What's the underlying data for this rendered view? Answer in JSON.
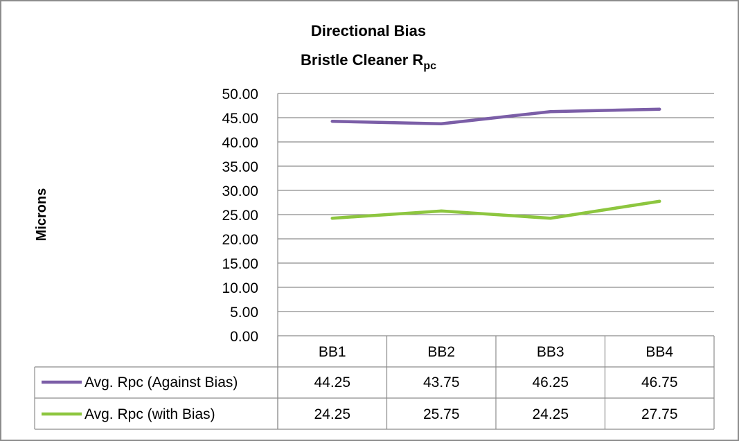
{
  "chart_data": {
    "type": "line",
    "title": "Directional Bias",
    "subtitle": "Bristle Cleaner R",
    "subtitle_subscript": "pc",
    "ylabel": "Microns",
    "xlabel": "",
    "categories": [
      "BB1",
      "BB2",
      "BB3",
      "BB4"
    ],
    "series": [
      {
        "name": "Avg. Rpc (Against Bias)",
        "values": [
          44.25,
          43.75,
          46.25,
          46.75
        ],
        "labels": [
          "44.25",
          "43.75",
          "46.25",
          "46.75"
        ],
        "color": "#7b5ea7"
      },
      {
        "name": "Avg. Rpc (with Bias)",
        "values": [
          24.25,
          25.75,
          24.25,
          27.75
        ],
        "labels": [
          "24.25",
          "25.75",
          "24.25",
          "27.75"
        ],
        "color": "#8dc63f"
      }
    ],
    "ylim": [
      0,
      50
    ],
    "y_ticks": [
      "0.00",
      "5.00",
      "10.00",
      "15.00",
      "20.00",
      "25.00",
      "30.00",
      "35.00",
      "40.00",
      "45.00",
      "50.00"
    ],
    "grid": true,
    "legend": "data-table"
  }
}
